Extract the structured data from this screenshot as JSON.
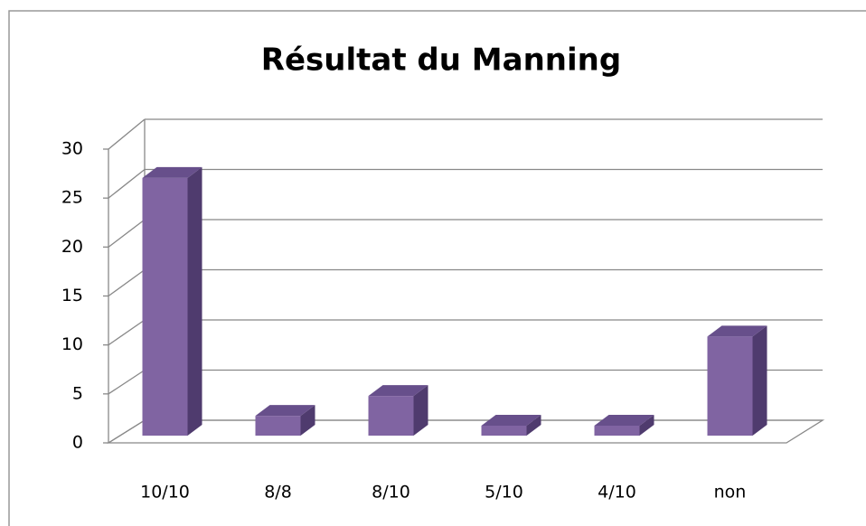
{
  "chart_data": {
    "type": "bar3d",
    "title": "Résultat du Manning",
    "categories": [
      "10/10",
      "8/8",
      "8/10",
      "5/10",
      "4/10",
      "non"
    ],
    "values": [
      26,
      2,
      4,
      1,
      1,
      10
    ],
    "color": "#8064a2",
    "ylim": [
      0,
      30
    ],
    "yticks": [
      0,
      5,
      10,
      15,
      20,
      25,
      30
    ],
    "grid": true
  }
}
